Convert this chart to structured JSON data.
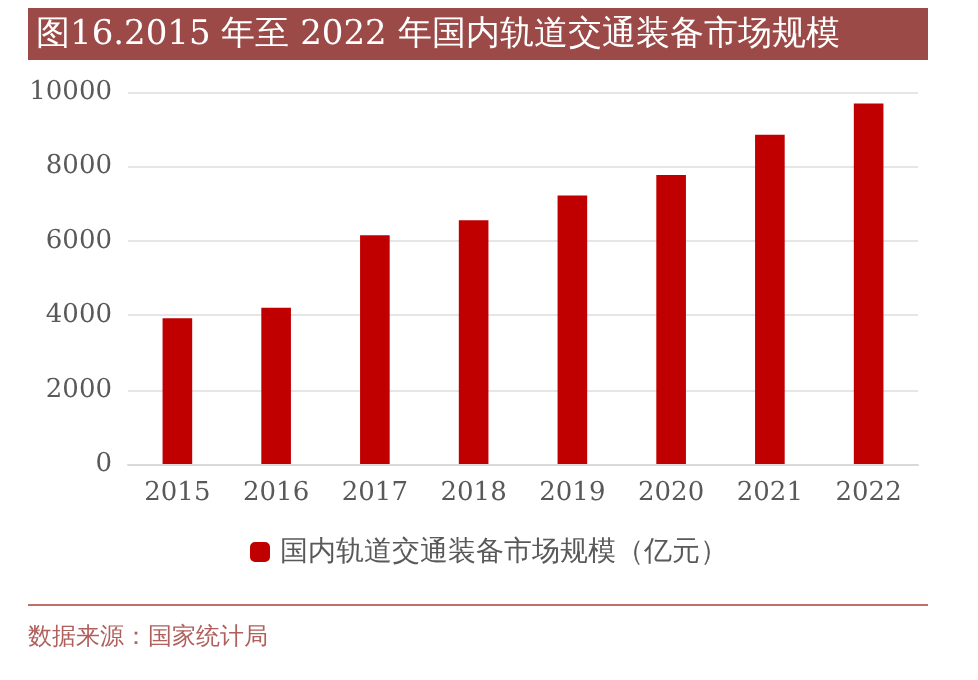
{
  "chart_data": {
    "type": "bar",
    "title": "图16.2015 年至 2022 年国内轨道交通装备市场规模",
    "categories": [
      "2015",
      "2016",
      "2017",
      "2018",
      "2019",
      "2020",
      "2021",
      "2022"
    ],
    "series": [
      {
        "name": "国内轨道交通装备市场规模（亿元）",
        "color": "#c00000",
        "values": [
          3920,
          4200,
          6150,
          6550,
          7220,
          7770,
          8850,
          9690
        ]
      }
    ],
    "ylim": [
      0,
      10000
    ],
    "yticks": [
      0,
      2000,
      4000,
      6000,
      8000,
      10000
    ],
    "grid": "y",
    "legend": "bottom",
    "annotations": [
      "数据来源：国家统计局"
    ]
  }
}
